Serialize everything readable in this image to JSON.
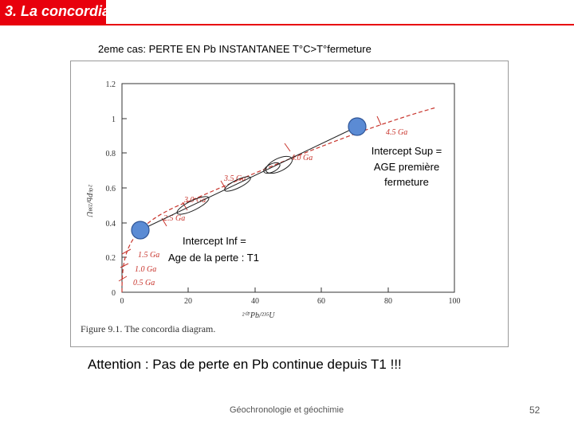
{
  "slide": {
    "title": "3. La concordia",
    "subtitle": "2eme cas: PERTE EN Pb INSTANTANEE T°C>T°fermeture",
    "note": "Attention : Pas de perte en Pb continue depuis T1 !!!",
    "footer": "Géochronologie et géochimie",
    "page_number": "52"
  },
  "figure": {
    "caption": "Figure 9.1.  The concordia diagram.",
    "y_axis_label": "²⁰⁶Pb/²³⁸U",
    "x_axis_label": "²⁰⁷Pb/²³⁵U",
    "y_ticks": [
      "0",
      "0.2",
      "0.4",
      "0.6",
      "0.8",
      "1",
      "1.2"
    ],
    "x_ticks": [
      "0",
      "20",
      "40",
      "60",
      "80",
      "100"
    ],
    "age_labels": [
      "0.5 Ga",
      "1.0 Ga",
      "1.5 Ga",
      "2.5 Ga",
      "3.0 Ga",
      "3.5 Ga",
      "4.0 Ga",
      "4.5 Ga"
    ],
    "intercept_sup_label": [
      "Intercept Sup =",
      "AGE première",
      "fermeture"
    ],
    "intercept_inf_label": [
      "Intercept Inf =",
      "Age de la perte : T1"
    ],
    "colors": {
      "title_bar": "#e8000d",
      "concordia": "#c8342c",
      "intercept_point": "#5b8bd4",
      "intercept_point_border": "#2f5597"
    }
  }
}
